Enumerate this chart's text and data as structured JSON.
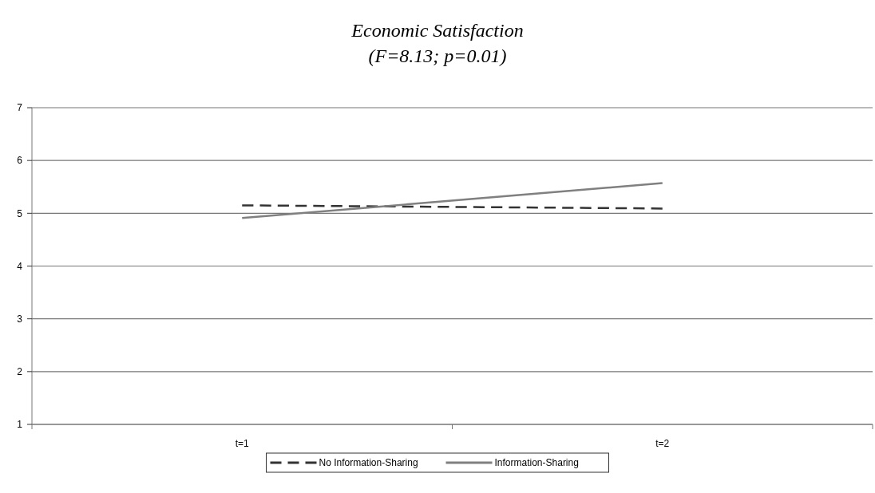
{
  "chart_data": {
    "type": "line",
    "title": "Economic Satisfaction",
    "subtitle": "(F=8.13; p=0.01)",
    "categories": [
      "t=1",
      "t=2"
    ],
    "series": [
      {
        "name": "No Information-Sharing",
        "color": "#333333",
        "values": [
          5.15,
          5.09
        ],
        "line_style": "dashed"
      },
      {
        "name": "Information-Sharing",
        "color": "#808080",
        "values": [
          4.91,
          5.57
        ],
        "line_style": "solid"
      }
    ],
    "ylim": [
      1,
      7
    ],
    "yticks": [
      1,
      2,
      3,
      4,
      5,
      6,
      7
    ],
    "grid": "y",
    "legend": "bottom",
    "marker": "none"
  }
}
